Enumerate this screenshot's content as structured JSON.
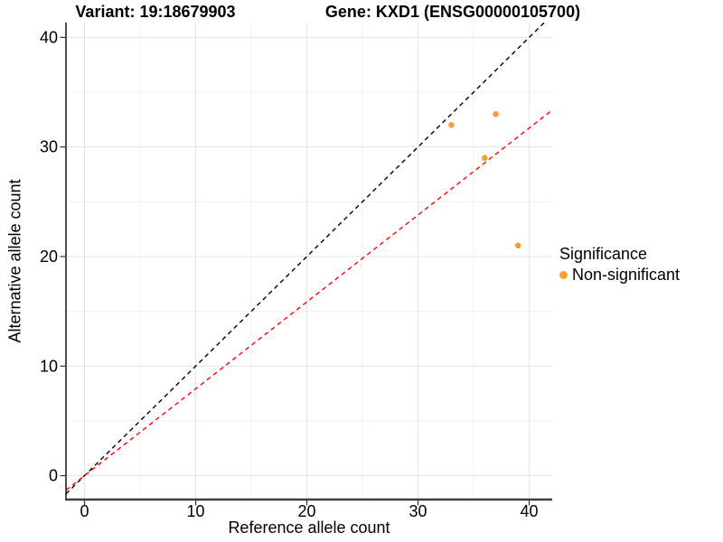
{
  "chart_data": {
    "type": "scatter",
    "titles": {
      "left": "Variant: 19:18679903",
      "right": "Gene: KXD1 (ENSG00000105700)"
    },
    "xlabel": "Reference allele count",
    "ylabel": "Alternative allele count",
    "xlim": [
      -1.67,
      42.07
    ],
    "ylim": [
      -2.18,
      41.35
    ],
    "x_ticks": [
      0,
      10,
      20,
      30,
      40
    ],
    "y_ticks": [
      0,
      10,
      20,
      30,
      40
    ],
    "x_minor_ticks": [
      5,
      15,
      25,
      35
    ],
    "y_minor_ticks": [
      5,
      15,
      25,
      35
    ],
    "grid": true,
    "series": [
      {
        "name": "Non-significant",
        "color": "#F8A02E",
        "marker": "circle",
        "points": [
          {
            "x": 33,
            "y": 32
          },
          {
            "x": 37,
            "y": 33
          },
          {
            "x": 36,
            "y": 29
          },
          {
            "x": 39,
            "y": 21
          }
        ]
      }
    ],
    "reference_lines": [
      {
        "name": "identity-line",
        "slope": 1,
        "intercept": 0,
        "color": "#000000",
        "style": "dashed"
      },
      {
        "name": "allele-ratio-line",
        "slope": 0.793,
        "intercept": 0,
        "color": "#FF0000",
        "style": "dashed"
      }
    ],
    "legend": {
      "title": "Significance",
      "position": "right",
      "items": [
        {
          "label": "Non-significant",
          "color": "#F8A02E"
        }
      ]
    },
    "colors": {
      "background": "#FFFFFF",
      "grid_major": "#E3E3E3",
      "grid_minor": "#F0F0F0",
      "axis_left": "#000000",
      "axis_bottom": "#3F3F3F",
      "tick_mark": "#333333",
      "text": "#000000"
    }
  }
}
